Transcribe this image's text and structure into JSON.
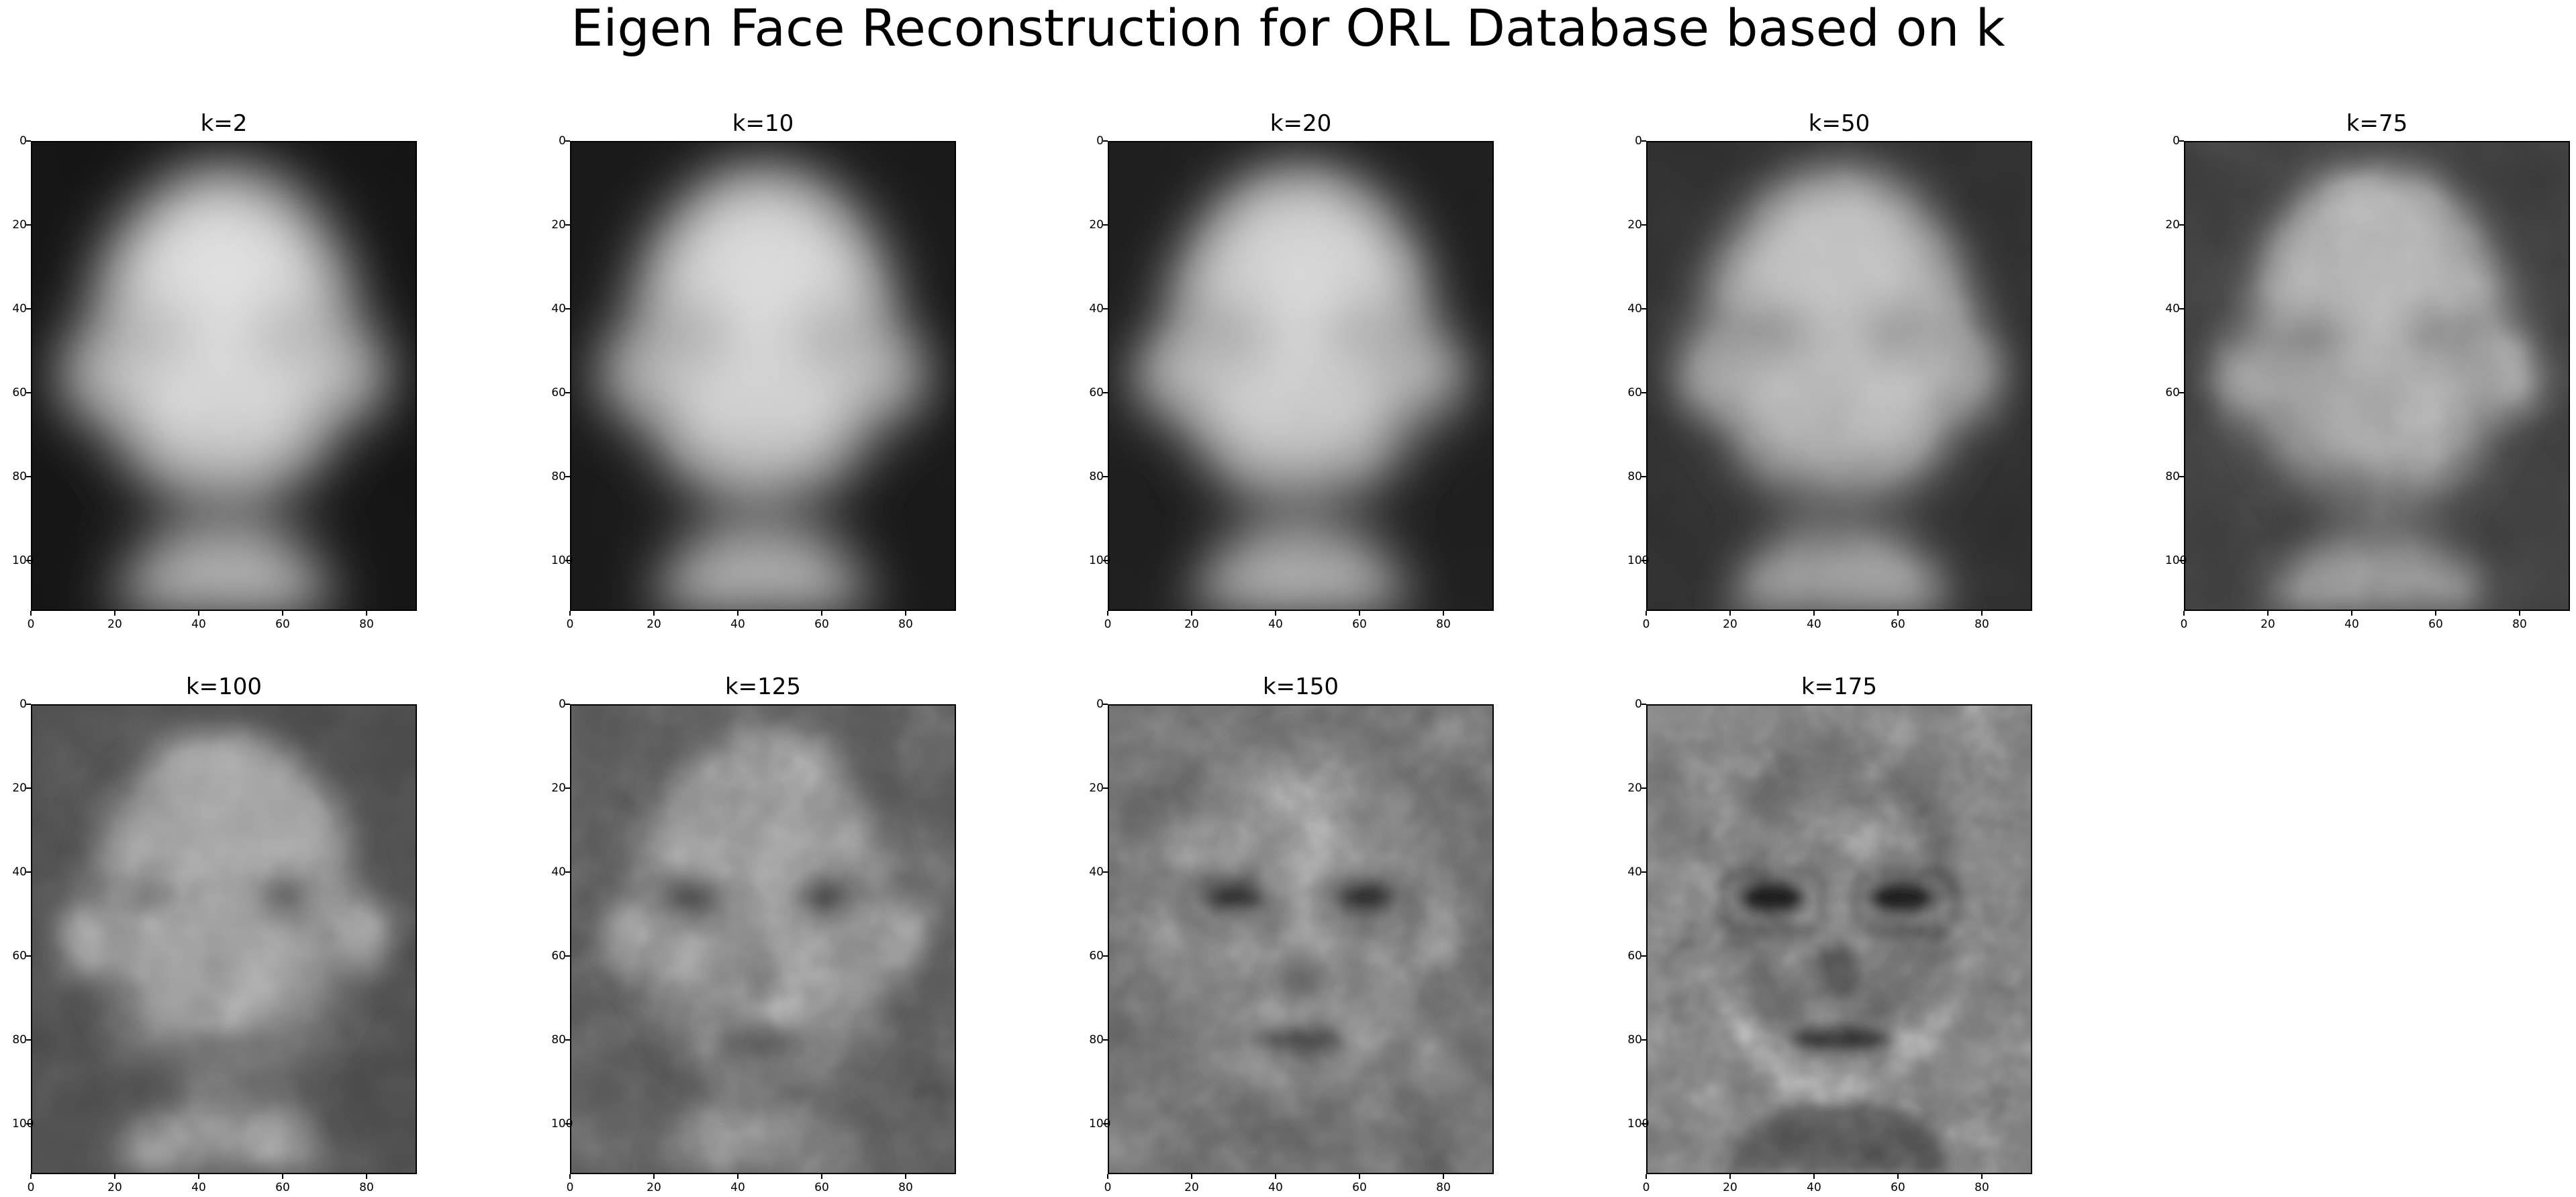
{
  "title": "Eigen Face Reconstruction for ORL Database based on k",
  "x_ticks": [
    "0",
    "20",
    "40",
    "60",
    "80"
  ],
  "x_tick_values": [
    0,
    20,
    40,
    60,
    80
  ],
  "x_extent": 92,
  "y_ticks": [
    "0",
    "20",
    "40",
    "60",
    "80",
    "100"
  ],
  "y_tick_values": [
    0,
    20,
    40,
    60,
    80,
    100
  ],
  "y_extent": 112,
  "panels": [
    {
      "title": "k=2",
      "k": 2
    },
    {
      "title": "k=10",
      "k": 10
    },
    {
      "title": "k=20",
      "k": 20
    },
    {
      "title": "k=50",
      "k": 50
    },
    {
      "title": "k=75",
      "k": 75
    },
    {
      "title": "k=100",
      "k": 100
    },
    {
      "title": "k=125",
      "k": 125
    },
    {
      "title": "k=150",
      "k": 150
    },
    {
      "title": "k=175",
      "k": 175
    }
  ]
}
